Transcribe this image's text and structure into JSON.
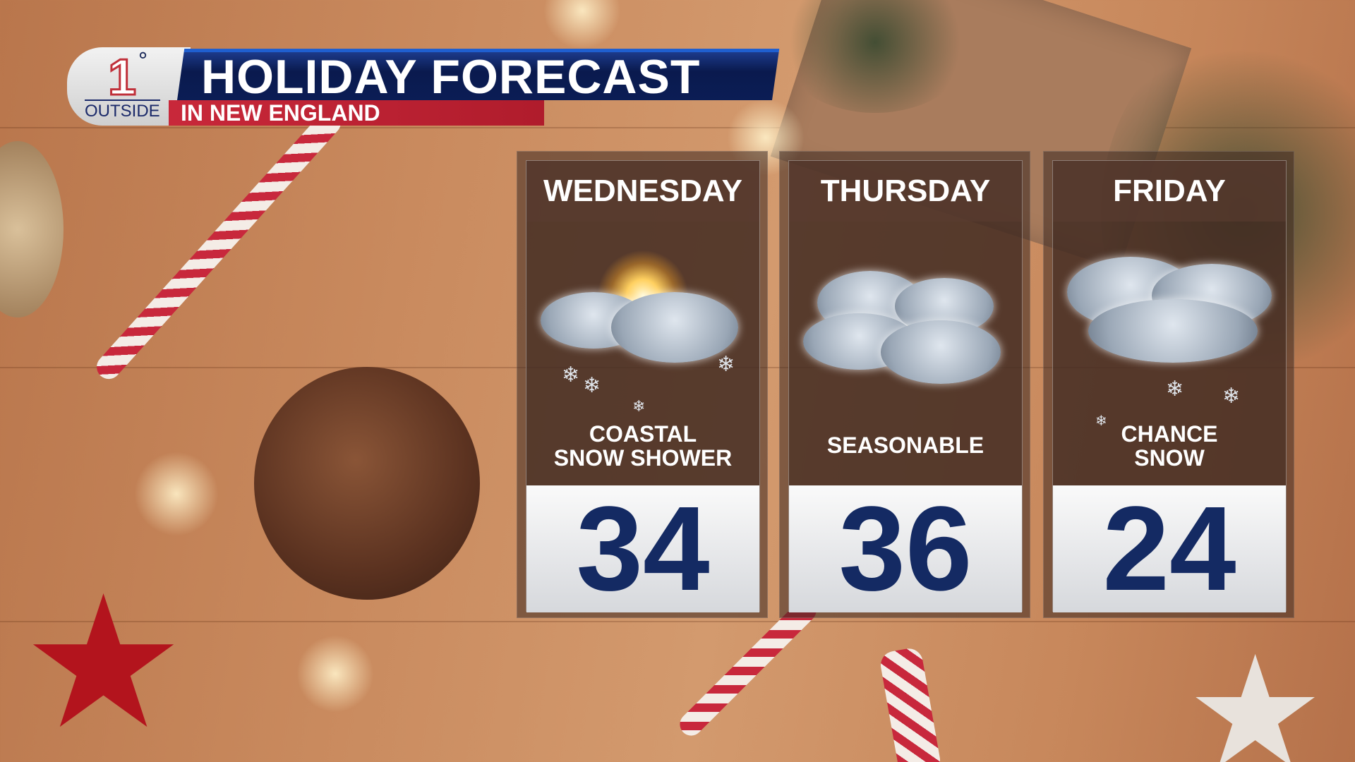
{
  "header": {
    "logo_number": "1",
    "logo_degree": "°",
    "logo_text": "OUTSIDE",
    "title": "HOLIDAY FORECAST",
    "subtitle": "IN NEW ENGLAND"
  },
  "colors": {
    "title_bar": "#0b1d55",
    "subtitle_bar": "#c8283a",
    "temperature": "#142a63"
  },
  "forecast": [
    {
      "day": "WEDNESDAY",
      "condition_line1": "COASTAL",
      "condition_line2": "SNOW SHOWER",
      "icon": "partly-sunny-snow-icon",
      "temperature": "34"
    },
    {
      "day": "THURSDAY",
      "condition_line1": "SEASONABLE",
      "condition_line2": "",
      "icon": "mostly-cloudy-icon",
      "temperature": "36"
    },
    {
      "day": "FRIDAY",
      "condition_line1": "CHANCE",
      "condition_line2": "SNOW",
      "icon": "cloudy-snow-icon",
      "temperature": "24"
    }
  ]
}
